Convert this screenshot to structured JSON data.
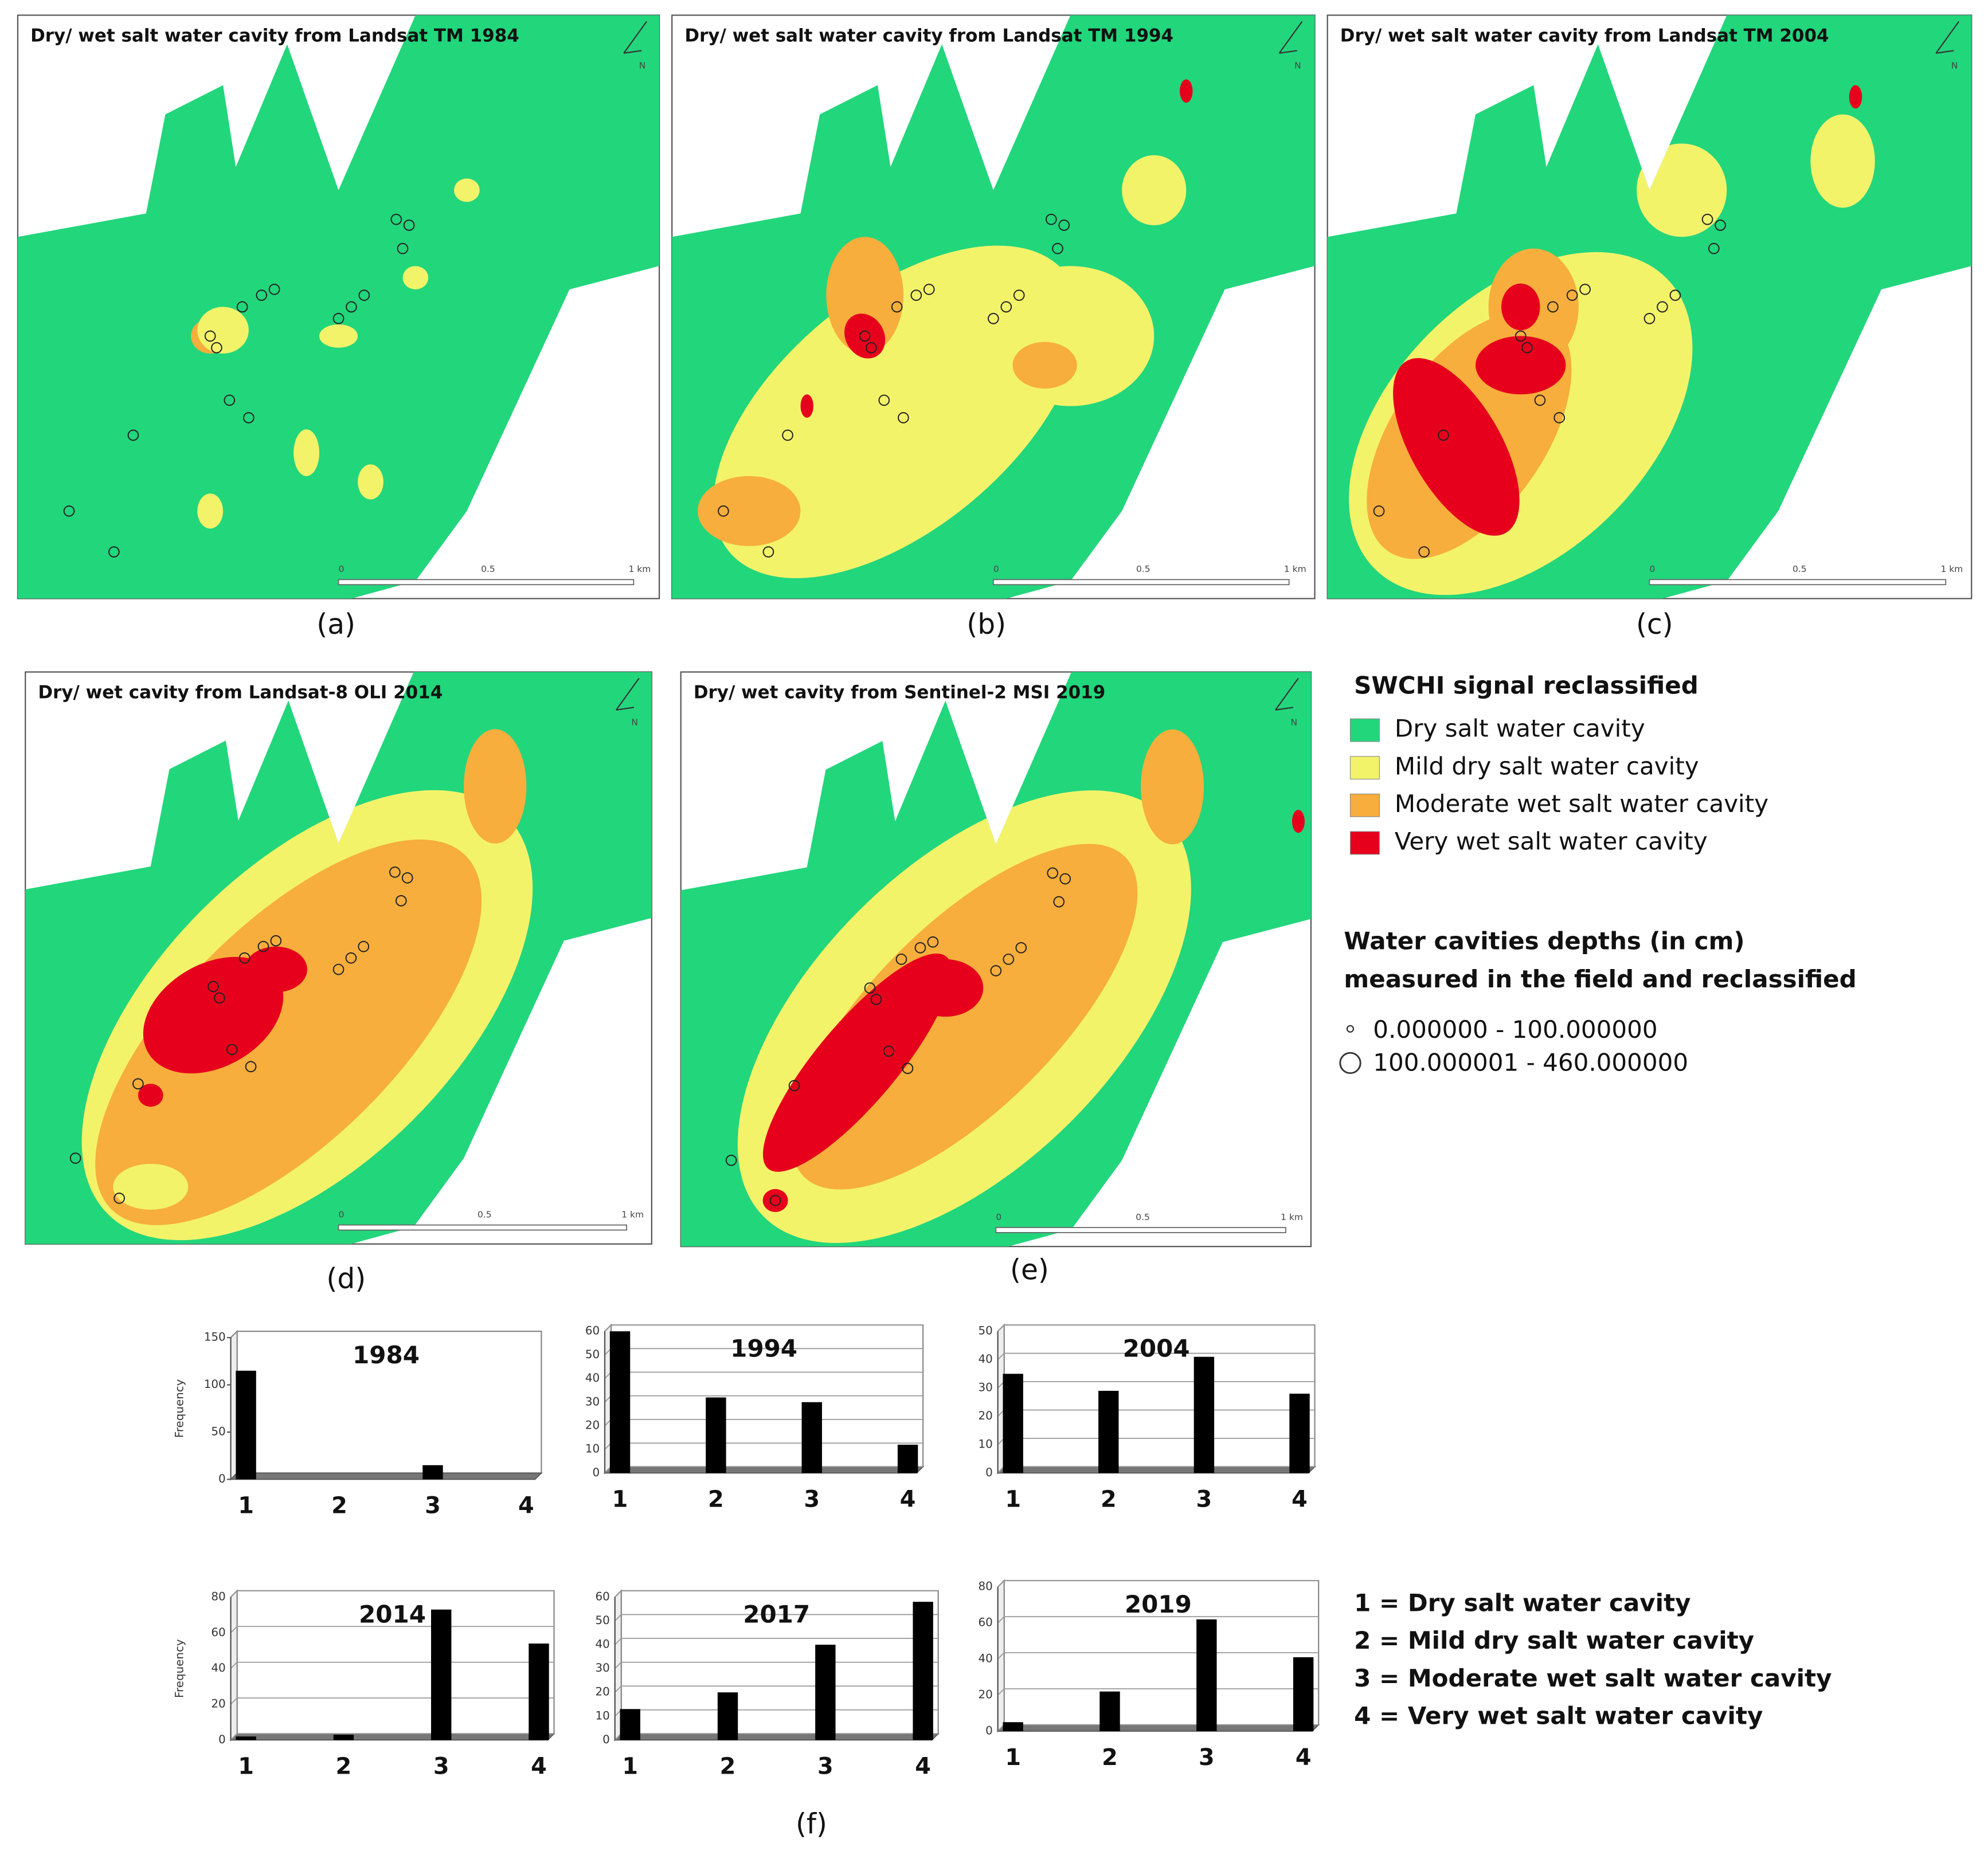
{
  "maps": [
    {
      "title": "Dry/ wet salt water cavity from Landsat TM 1984",
      "caption": "(a)"
    },
    {
      "title": "Dry/ wet salt water cavity from Landsat TM 1994",
      "caption": "(b)"
    },
    {
      "title": "Dry/ wet salt water cavity from Landsat TM 2004",
      "caption": "(c)"
    },
    {
      "title": "Dry/ wet cavity from Landsat-8 OLI 2014",
      "caption": "(d)"
    },
    {
      "title": "Dry/ wet cavity from Sentinel-2 MSI 2019",
      "caption": "(e)"
    }
  ],
  "map_scale": {
    "start": "0",
    "mid": "0.5",
    "end": "1 km",
    "north": "N"
  },
  "legend": {
    "title": "SWCHI signal reclassified",
    "items": [
      {
        "label": "Dry salt water cavity",
        "color": "#22d67c"
      },
      {
        "label": "Mild dry salt water cavity",
        "color": "#f3f36a"
      },
      {
        "label": "Moderate wet salt water cavity",
        "color": "#f7ae3c"
      },
      {
        "label": "Very wet salt water cavity",
        "color": "#e6001c"
      }
    ]
  },
  "depth_legend": {
    "title_lines": [
      "Water cavities depths (in cm)",
      "measured in the field and reclassified"
    ],
    "items": [
      "0.000000 - 100.000000",
      "100.000001 - 460.000000"
    ]
  },
  "key": [
    "1 = Dry salt water cavity",
    "2 = Mild dry salt water cavity",
    "3 = Moderate wet salt water cavity",
    "4 = Very wet salt water cavity"
  ],
  "panel_f_caption": "(f)",
  "chart_data": [
    {
      "type": "bar",
      "title": "1984",
      "ylabel": "Frequency",
      "categories": [
        "1",
        "2",
        "3",
        "4"
      ],
      "values": [
        115,
        0,
        15,
        0
      ],
      "ylim": [
        0,
        150
      ],
      "yticks": [
        0,
        50,
        100,
        150
      ],
      "color": "#000000",
      "grid": false
    },
    {
      "type": "bar",
      "title": "1994",
      "categories": [
        "1",
        "2",
        "3",
        "4"
      ],
      "values": [
        60,
        32,
        30,
        12
      ],
      "ylim": [
        0,
        60
      ],
      "yticks": [
        0,
        10,
        20,
        30,
        40,
        50,
        60
      ],
      "color": "#000000",
      "grid": true
    },
    {
      "type": "bar",
      "title": "2004",
      "categories": [
        "1",
        "2",
        "3",
        "4"
      ],
      "values": [
        35,
        29,
        41,
        28
      ],
      "ylim": [
        0,
        50
      ],
      "yticks": [
        0,
        10,
        20,
        30,
        40,
        50
      ],
      "color": "#000000",
      "grid": true
    },
    {
      "type": "bar",
      "title": "2014",
      "ylabel": "Frequency",
      "categories": [
        "1",
        "2",
        "3",
        "4"
      ],
      "values": [
        2,
        3,
        73,
        54
      ],
      "ylim": [
        0,
        80
      ],
      "yticks": [
        0,
        20,
        40,
        60,
        80
      ],
      "color": "#000000",
      "grid": true
    },
    {
      "type": "bar",
      "title": "2017",
      "categories": [
        "1",
        "2",
        "3",
        "4"
      ],
      "values": [
        13,
        20,
        40,
        58
      ],
      "ylim": [
        0,
        60
      ],
      "yticks": [
        0,
        10,
        20,
        30,
        40,
        50,
        60
      ],
      "color": "#000000",
      "grid": true
    },
    {
      "type": "bar",
      "title": "2019",
      "categories": [
        "1",
        "2",
        "3",
        "4"
      ],
      "values": [
        5,
        22,
        62,
        41
      ],
      "ylim": [
        0,
        80
      ],
      "yticks": [
        0,
        20,
        40,
        60,
        80
      ],
      "color": "#000000",
      "grid": true
    }
  ]
}
